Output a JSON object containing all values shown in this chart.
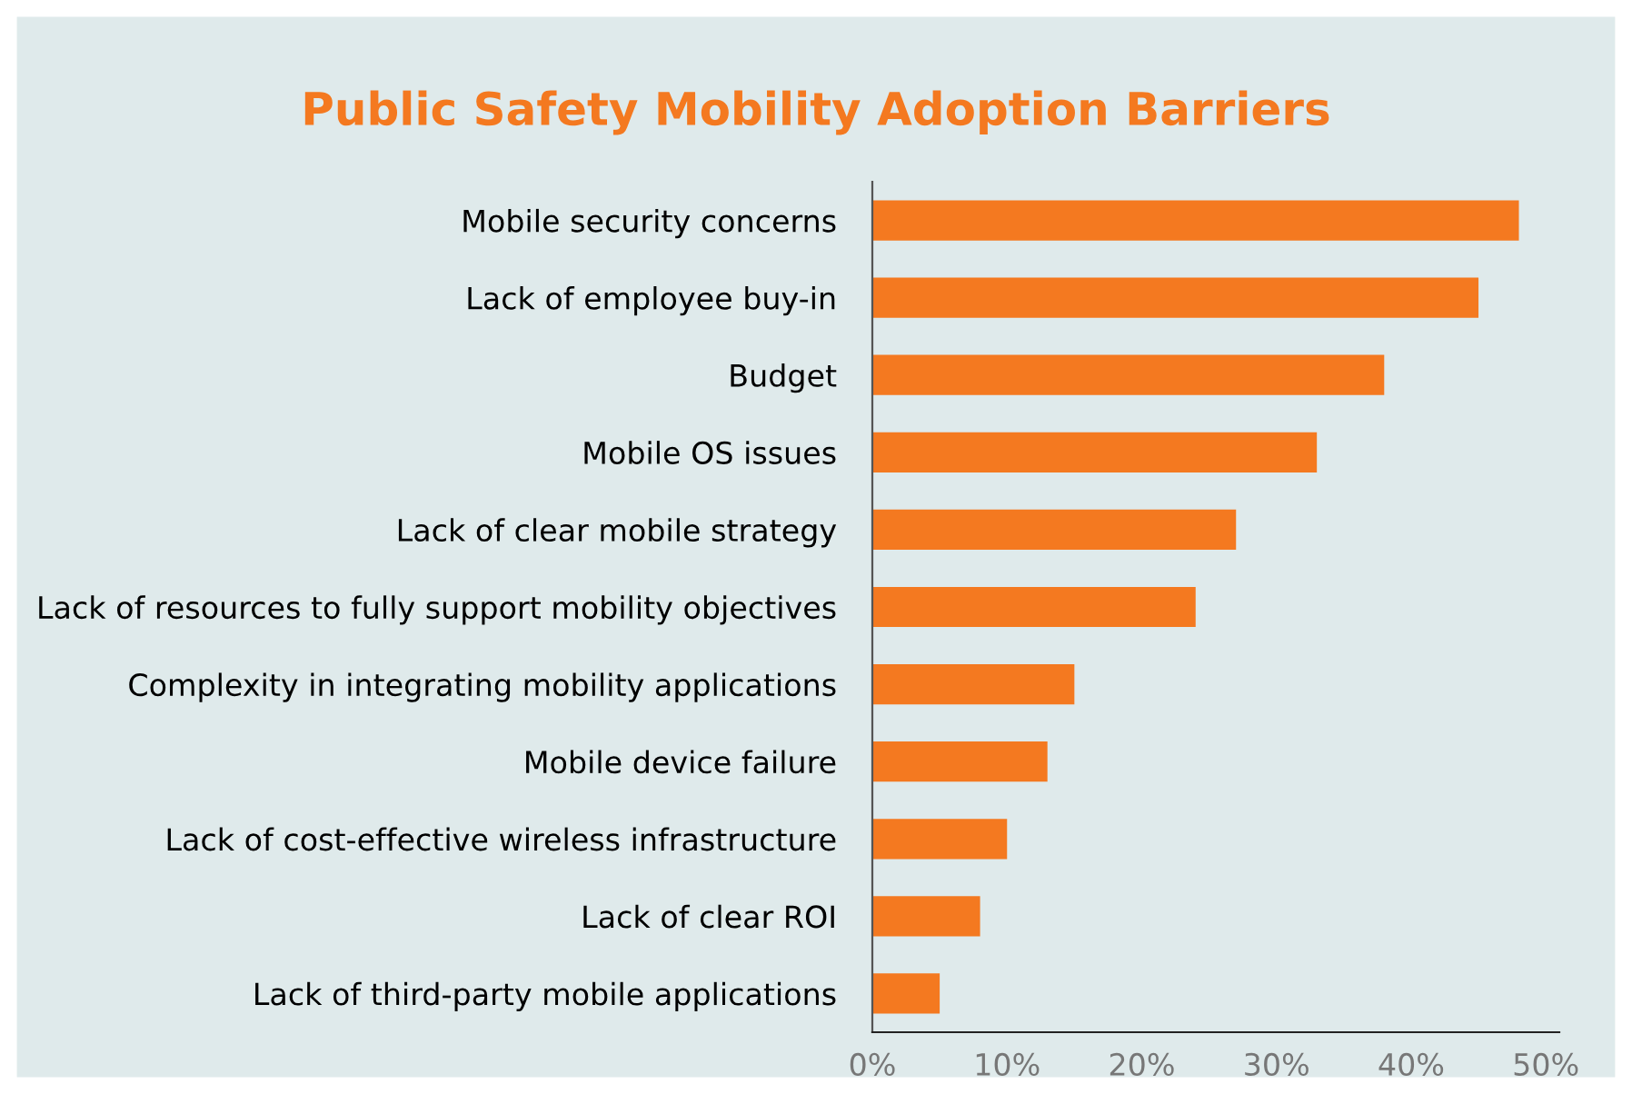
{
  "chart_data": {
    "type": "bar",
    "orientation": "horizontal",
    "title": "Public Safety Mobility Adoption Barriers",
    "categories": [
      "Mobile security concerns",
      "Lack of employee buy-in",
      "Budget",
      "Mobile OS issues",
      "Lack of clear mobile strategy",
      "Lack of resources to fully support mobility objectives",
      "Complexity in integrating mobility applications",
      "Mobile device failure",
      "Lack of cost-effective wireless infrastructure",
      "Lack of clear ROI",
      "Lack of third-party mobile applications"
    ],
    "values": [
      48,
      45,
      38,
      33,
      27,
      24,
      15,
      13,
      10,
      8,
      5
    ],
    "color": "#f47920",
    "xlim": [
      0,
      51
    ],
    "xticks": [
      {
        "value": 0,
        "label": "0%"
      },
      {
        "value": 10,
        "label": "10%"
      },
      {
        "value": 20,
        "label": "20%"
      },
      {
        "value": 30,
        "label": "30%"
      },
      {
        "value": 40,
        "label": "40%"
      },
      {
        "value": 50,
        "label": "50%"
      }
    ],
    "grid": false,
    "legend": false
  }
}
